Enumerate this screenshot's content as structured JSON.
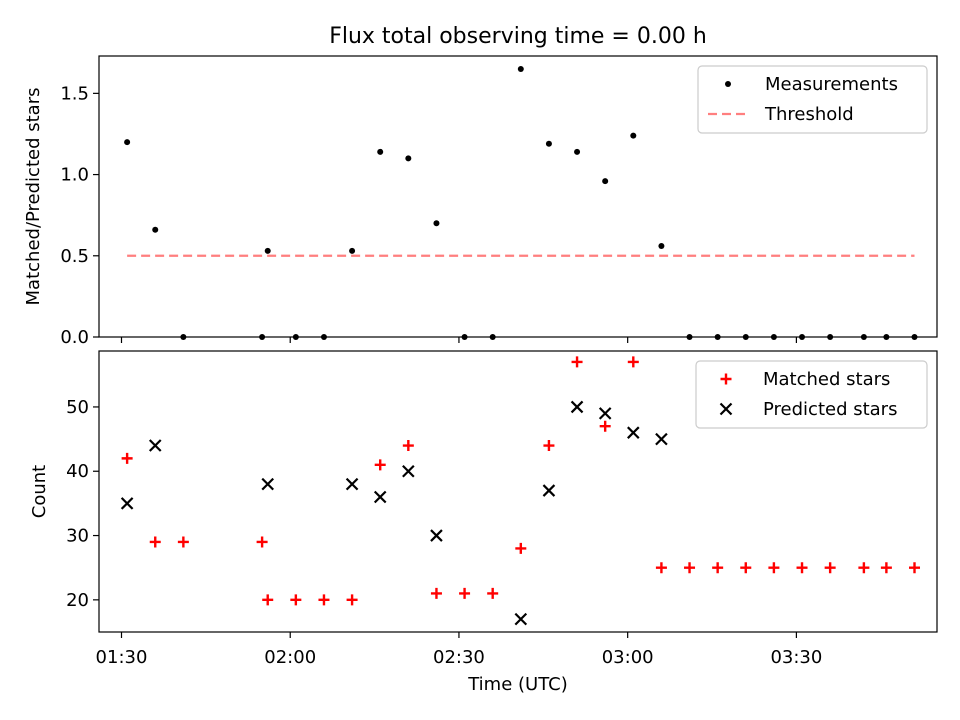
{
  "figure": {
    "title": "Flux total observing time = 0.00 h",
    "xlabel": "Time (UTC)",
    "x_ticks": [
      "01:30",
      "02:00",
      "02:30",
      "03:00",
      "03:30"
    ]
  },
  "chart_data": [
    {
      "type": "scatter",
      "ylabel": "Matched/Predicted stars",
      "xlim": [
        "01:26",
        "03:55"
      ],
      "ylim": [
        0,
        1.73
      ],
      "y_ticks": [
        "0.0",
        "0.5",
        "1.0",
        "1.5"
      ],
      "legend_position": "top-right",
      "series": [
        {
          "name": "Measurements",
          "marker": "dot",
          "color": "#000000",
          "points": [
            {
              "x": "01:31",
              "y": 1.2
            },
            {
              "x": "01:36",
              "y": 0.66
            },
            {
              "x": "01:41",
              "y": 0.0
            },
            {
              "x": "01:55",
              "y": 0.0
            },
            {
              "x": "01:56",
              "y": 0.53
            },
            {
              "x": "02:01",
              "y": 0.0
            },
            {
              "x": "02:06",
              "y": 0.0
            },
            {
              "x": "02:11",
              "y": 0.53
            },
            {
              "x": "02:16",
              "y": 1.14
            },
            {
              "x": "02:21",
              "y": 1.1
            },
            {
              "x": "02:26",
              "y": 0.7
            },
            {
              "x": "02:31",
              "y": 0.0
            },
            {
              "x": "02:36",
              "y": 0.0
            },
            {
              "x": "02:41",
              "y": 1.65
            },
            {
              "x": "02:46",
              "y": 1.19
            },
            {
              "x": "02:51",
              "y": 1.14
            },
            {
              "x": "02:56",
              "y": 0.96
            },
            {
              "x": "03:01",
              "y": 1.24
            },
            {
              "x": "03:06",
              "y": 0.56
            },
            {
              "x": "03:11",
              "y": 0.0
            },
            {
              "x": "03:16",
              "y": 0.0
            },
            {
              "x": "03:21",
              "y": 0.0
            },
            {
              "x": "03:26",
              "y": 0.0
            },
            {
              "x": "03:31",
              "y": 0.0
            },
            {
              "x": "03:36",
              "y": 0.0
            },
            {
              "x": "03:42",
              "y": 0.0
            },
            {
              "x": "03:46",
              "y": 0.0
            },
            {
              "x": "03:51",
              "y": 0.0
            }
          ]
        },
        {
          "name": "Threshold",
          "type": "line",
          "style": "dashed",
          "color": "#ff7f7f",
          "points": [
            {
              "x": "01:31",
              "y": 0.5
            },
            {
              "x": "03:51",
              "y": 0.5
            }
          ]
        }
      ]
    },
    {
      "type": "scatter",
      "ylabel": "Count",
      "xlim": [
        "01:26",
        "03:55"
      ],
      "ylim": [
        15,
        58.7
      ],
      "y_ticks": [
        "20",
        "30",
        "40",
        "50"
      ],
      "legend_position": "top-right",
      "series": [
        {
          "name": "Matched stars",
          "marker": "plus",
          "color": "#ff0000",
          "points": [
            {
              "x": "01:31",
              "y": 42
            },
            {
              "x": "01:36",
              "y": 29
            },
            {
              "x": "01:41",
              "y": 29
            },
            {
              "x": "01:55",
              "y": 29
            },
            {
              "x": "01:56",
              "y": 20
            },
            {
              "x": "02:01",
              "y": 20
            },
            {
              "x": "02:06",
              "y": 20
            },
            {
              "x": "02:11",
              "y": 20
            },
            {
              "x": "02:16",
              "y": 41
            },
            {
              "x": "02:21",
              "y": 44
            },
            {
              "x": "02:26",
              "y": 21
            },
            {
              "x": "02:31",
              "y": 21
            },
            {
              "x": "02:36",
              "y": 21
            },
            {
              "x": "02:41",
              "y": 28
            },
            {
              "x": "02:46",
              "y": 44
            },
            {
              "x": "02:51",
              "y": 57
            },
            {
              "x": "02:56",
              "y": 47
            },
            {
              "x": "03:01",
              "y": 57
            },
            {
              "x": "03:06",
              "y": 25
            },
            {
              "x": "03:11",
              "y": 25
            },
            {
              "x": "03:16",
              "y": 25
            },
            {
              "x": "03:21",
              "y": 25
            },
            {
              "x": "03:26",
              "y": 25
            },
            {
              "x": "03:31",
              "y": 25
            },
            {
              "x": "03:36",
              "y": 25
            },
            {
              "x": "03:42",
              "y": 25
            },
            {
              "x": "03:46",
              "y": 25
            },
            {
              "x": "03:51",
              "y": 25
            }
          ]
        },
        {
          "name": "Predicted stars",
          "marker": "x",
          "color": "#000000",
          "points": [
            {
              "x": "01:31",
              "y": 35
            },
            {
              "x": "01:36",
              "y": 44
            },
            {
              "x": "01:56",
              "y": 38
            },
            {
              "x": "02:11",
              "y": 38
            },
            {
              "x": "02:16",
              "y": 36
            },
            {
              "x": "02:21",
              "y": 40
            },
            {
              "x": "02:26",
              "y": 30
            },
            {
              "x": "02:41",
              "y": 17
            },
            {
              "x": "02:46",
              "y": 37
            },
            {
              "x": "02:51",
              "y": 50
            },
            {
              "x": "02:56",
              "y": 49
            },
            {
              "x": "03:01",
              "y": 46
            },
            {
              "x": "03:06",
              "y": 45
            }
          ]
        }
      ]
    }
  ]
}
